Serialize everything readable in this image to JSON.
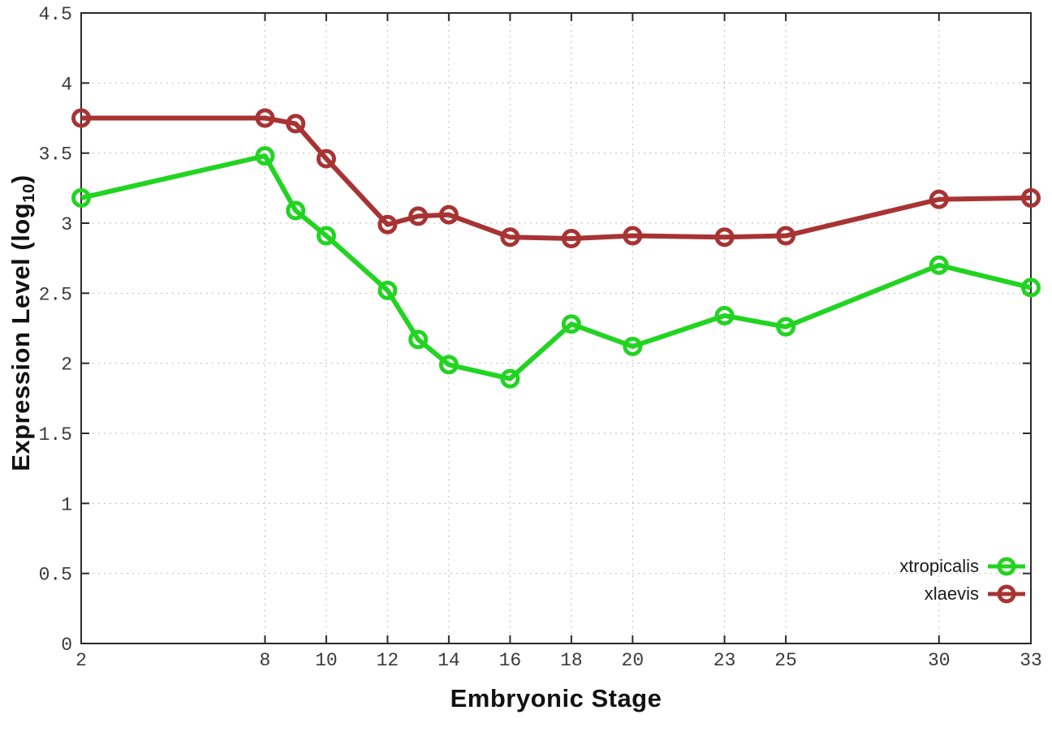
{
  "chart_data": {
    "type": "line",
    "title": "",
    "xlabel": "Embryonic Stage",
    "ylabel": "Expression Level (log10)",
    "ylabel_parts": {
      "prefix": "Expression Level (log",
      "sub": "10",
      "suffix": ")"
    },
    "x": [
      2,
      8,
      9,
      10,
      12,
      13,
      14,
      16,
      18,
      20,
      23,
      25,
      30,
      33
    ],
    "series": [
      {
        "name": "xtropicalis",
        "color": "#22d422",
        "values": [
          3.18,
          3.48,
          3.09,
          2.91,
          2.52,
          2.17,
          1.99,
          1.89,
          2.28,
          2.12,
          2.34,
          2.26,
          2.7,
          2.54
        ]
      },
      {
        "name": "xlaevis",
        "color": "#a83333",
        "values": [
          3.75,
          3.75,
          3.71,
          3.46,
          2.99,
          3.05,
          3.06,
          2.9,
          2.89,
          2.91,
          2.9,
          2.91,
          3.17,
          3.18
        ]
      }
    ],
    "xticks": [
      2,
      8,
      10,
      12,
      14,
      16,
      18,
      20,
      23,
      25,
      30,
      33
    ],
    "yticks": [
      0,
      0.5,
      1,
      1.5,
      2,
      2.5,
      3,
      3.5,
      4,
      4.5
    ],
    "xlim": [
      2,
      33
    ],
    "ylim": [
      0,
      4.5
    ],
    "grid": true,
    "legend_position": "bottom-right"
  },
  "style": {
    "border_color": "#2b2b2b",
    "grid_color": "#bdbdbd",
    "background": "#ffffff",
    "marker": "open-circle"
  }
}
